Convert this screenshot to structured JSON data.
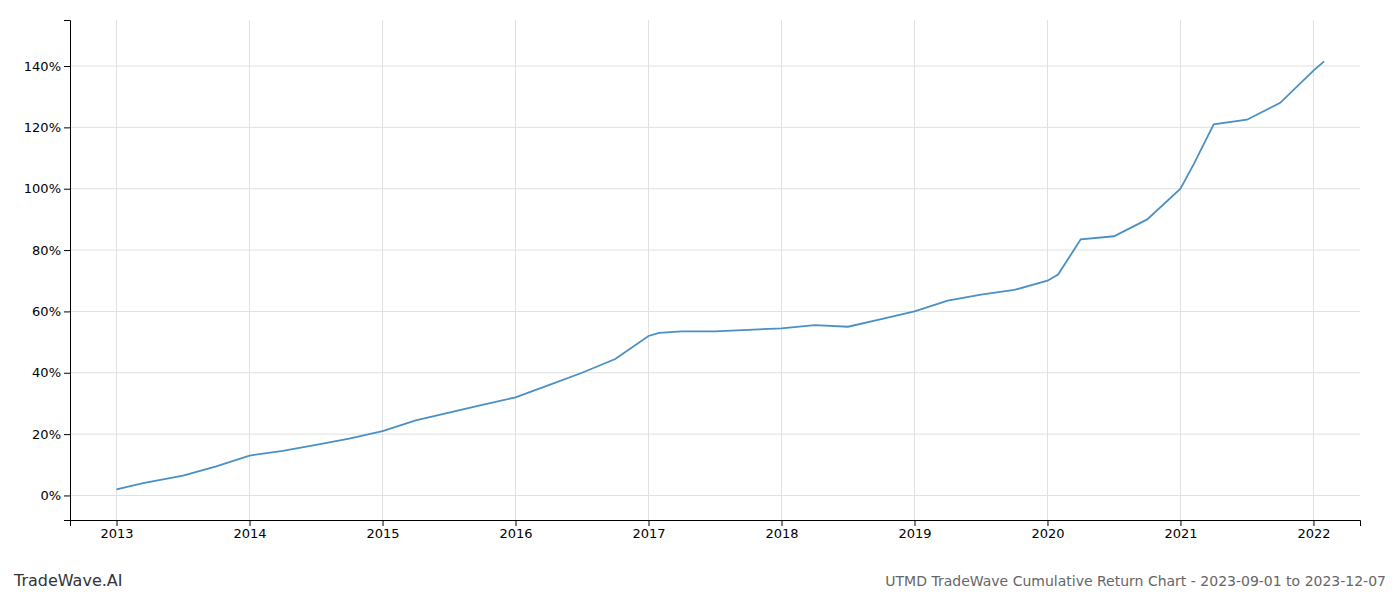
{
  "chart_data": {
    "type": "line",
    "title": "UTMD TradeWave Cumulative Return Chart - 2023-09-01 to 2023-12-07",
    "annotations": [
      "TradeWave.AI"
    ],
    "x": [
      2013.0,
      2013.2,
      2013.5,
      2013.75,
      2014.0,
      2014.25,
      2014.5,
      2014.75,
      2015.0,
      2015.25,
      2015.5,
      2015.75,
      2016.0,
      2016.25,
      2016.5,
      2016.75,
      2017.0,
      2017.08,
      2017.25,
      2017.5,
      2017.75,
      2018.0,
      2018.25,
      2018.5,
      2018.75,
      2019.0,
      2019.25,
      2019.5,
      2019.75,
      2020.0,
      2020.08,
      2020.25,
      2020.5,
      2020.75,
      2021.0,
      2021.1,
      2021.25,
      2021.5,
      2021.75,
      2022.0,
      2022.08
    ],
    "values": [
      2.0,
      4.0,
      6.5,
      9.5,
      13.0,
      14.5,
      16.5,
      18.5,
      21.0,
      24.5,
      27.0,
      29.5,
      32.0,
      36.0,
      40.0,
      44.5,
      52.0,
      53.0,
      53.5,
      53.5,
      54.0,
      54.5,
      55.5,
      55.0,
      57.5,
      60.0,
      63.5,
      65.5,
      67.0,
      70.0,
      72.0,
      83.5,
      84.5,
      90.0,
      100.0,
      108.0,
      121.0,
      122.5,
      128.0,
      138.5,
      141.5
    ],
    "color": "#4a90c4",
    "xlim": [
      2012.65,
      2022.35
    ],
    "ylim": [
      -8,
      155
    ],
    "xticks": [
      2013,
      2014,
      2015,
      2016,
      2017,
      2018,
      2019,
      2020,
      2021,
      2022
    ],
    "yticks": [
      {
        "value": 0,
        "label": "0%"
      },
      {
        "value": 20,
        "label": "20%"
      },
      {
        "value": 40,
        "label": "40%"
      },
      {
        "value": 60,
        "label": "60%"
      },
      {
        "value": 80,
        "label": "80%"
      },
      {
        "value": 100,
        "label": "100%"
      },
      {
        "value": 120,
        "label": "120%"
      },
      {
        "value": 140,
        "label": "140%"
      }
    ],
    "grid": true
  }
}
